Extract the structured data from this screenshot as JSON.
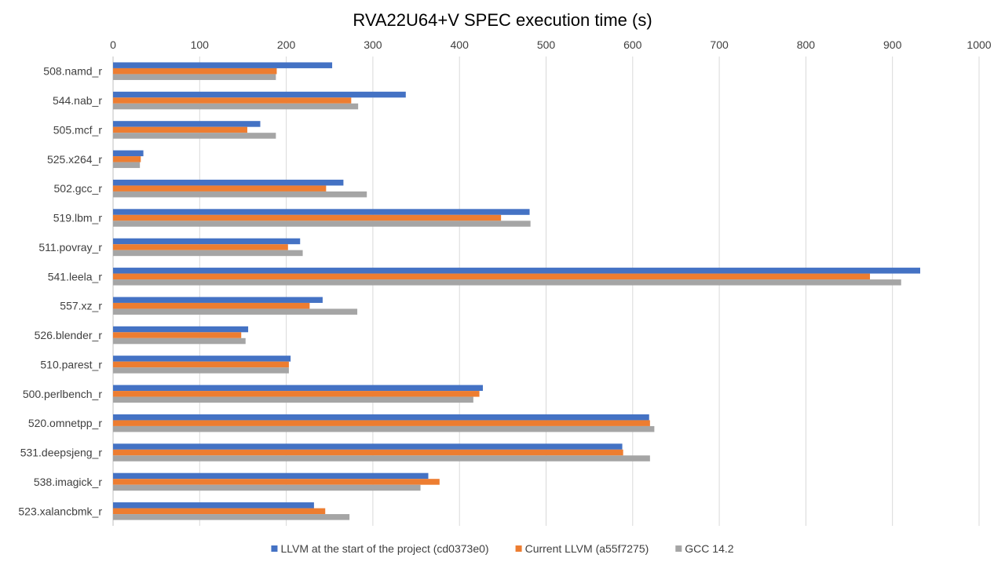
{
  "chart_data": {
    "type": "bar",
    "orientation": "horizontal",
    "title": "RVA22U64+V SPEC execution time (s)",
    "xlabel": "",
    "ylabel": "",
    "xlim": [
      0,
      1000
    ],
    "x_ticks": [
      0,
      100,
      200,
      300,
      400,
      500,
      600,
      700,
      800,
      900,
      1000
    ],
    "x_axis_position": "top",
    "grid": "vertical",
    "legend_position": "bottom",
    "categories": [
      "508.namd_r",
      "544.nab_r",
      "505.mcf_r",
      "525.x264_r",
      "502.gcc_r",
      "519.lbm_r",
      "511.povray_r",
      "541.leela_r",
      "557.xz_r",
      "526.blender_r",
      "510.parest_r",
      "500.perlbench_r",
      "520.omnetpp_r",
      "531.deepsjeng_r",
      "538.imagick_r",
      "523.xalancbmk_r"
    ],
    "series": [
      {
        "name": "LLVM at the start of the project (cd0373e0)",
        "color": "#4472c4",
        "values": [
          253,
          338,
          170,
          35,
          266,
          481,
          216,
          932,
          242,
          156,
          205,
          427,
          619,
          588,
          364,
          232
        ]
      },
      {
        "name": "Current LLVM (a55f7275)",
        "color": "#ed7d31",
        "values": [
          189,
          275,
          155,
          32,
          246,
          448,
          202,
          874,
          227,
          148,
          203,
          423,
          620,
          589,
          377,
          245
        ]
      },
      {
        "name": "GCC 14.2",
        "color": "#a5a5a5",
        "values": [
          188,
          283,
          188,
          31,
          293,
          482,
          219,
          910,
          282,
          153,
          203,
          416,
          625,
          620,
          355,
          273
        ]
      }
    ]
  }
}
